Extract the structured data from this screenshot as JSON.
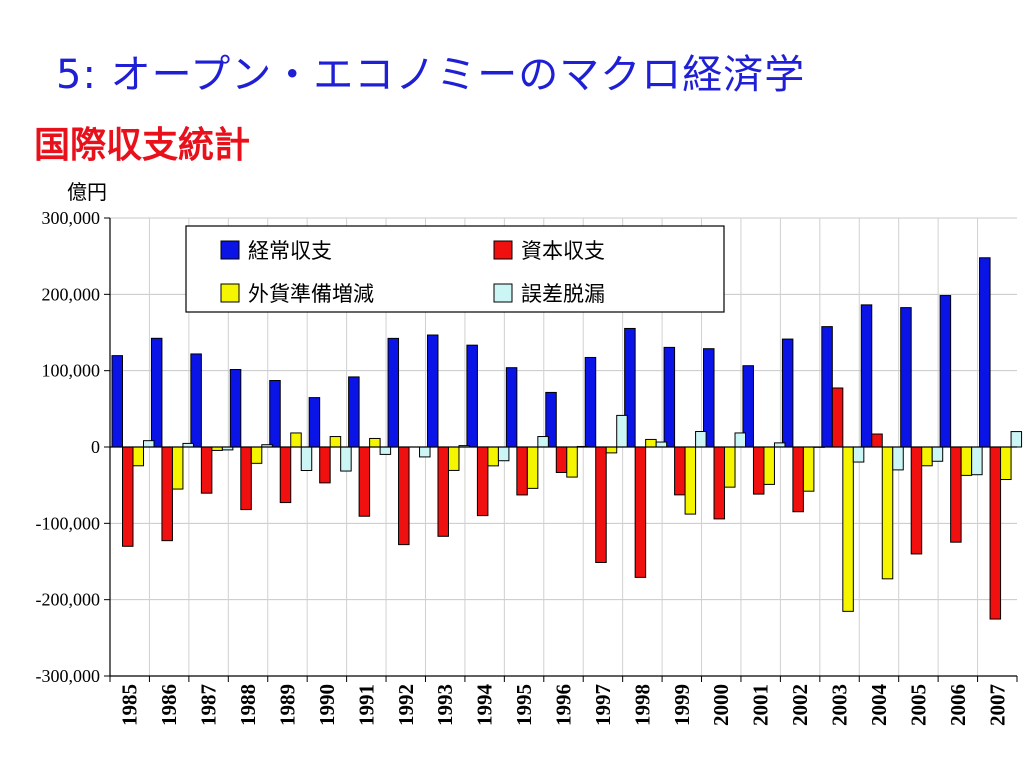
{
  "slide": {
    "title": "5: オープン・エコノミーのマクロ経済学",
    "subtitle": "国際収支統計"
  },
  "chart_data": {
    "type": "bar",
    "unit_label": "億円",
    "categories": [
      "1985",
      "1986",
      "1987",
      "1988",
      "1989",
      "1990",
      "1991",
      "1992",
      "1993",
      "1994",
      "1995",
      "1996",
      "1997",
      "1998",
      "1999",
      "2000",
      "2001",
      "2002",
      "2003",
      "2004",
      "2005",
      "2006",
      "2007"
    ],
    "ylim": [
      -300000,
      300000
    ],
    "yticks": [
      300000,
      200000,
      100000,
      0,
      -100000,
      -200000,
      -300000
    ],
    "ytick_labels": [
      "300,000",
      "200,000",
      "100,000",
      "0",
      "-100,000",
      "-200,000",
      "-300,000"
    ],
    "grid": true,
    "legend_position": "top-center",
    "series": [
      {
        "name": "経常収支",
        "color": "#0a14e6",
        "values": [
          119700,
          142400,
          121900,
          101500,
          87100,
          64700,
          91800,
          142300,
          146700,
          133400,
          103900,
          71500,
          117300,
          155300,
          130500,
          128800,
          106500,
          141400,
          157700,
          186200,
          182600,
          198400,
          247900
        ]
      },
      {
        "name": "資本収支",
        "color": "#f01010",
        "values": [
          -130100,
          -122700,
          -60500,
          -82000,
          -72800,
          -47000,
          -90700,
          -127900,
          -117000,
          -89900,
          -62800,
          -33400,
          -151300,
          -170800,
          -62700,
          -94200,
          -61700,
          -84800,
          77300,
          17000,
          -140100,
          -124700,
          -225400
        ]
      },
      {
        "name": "外貨準備増減",
        "color": "#f5f500",
        "values": [
          -24600,
          -55100,
          -4500,
          -21400,
          18400,
          13700,
          11200,
          0,
          -30700,
          -24700,
          -54200,
          -39400,
          -7700,
          9900,
          -87900,
          -52600,
          -49000,
          -57900,
          -215300,
          -172700,
          -24600,
          -37200,
          -42600
        ]
      },
      {
        "name": "誤差脱漏",
        "color": "#ccf5f5",
        "values": [
          8300,
          4700,
          -3800,
          3000,
          -30800,
          -31500,
          -9700,
          -13000,
          1800,
          -18000,
          13700,
          700,
          41400,
          6500,
          20300,
          18400,
          5400,
          -400,
          -19700,
          -30000,
          -18700,
          -36300,
          20200
        ]
      }
    ]
  }
}
